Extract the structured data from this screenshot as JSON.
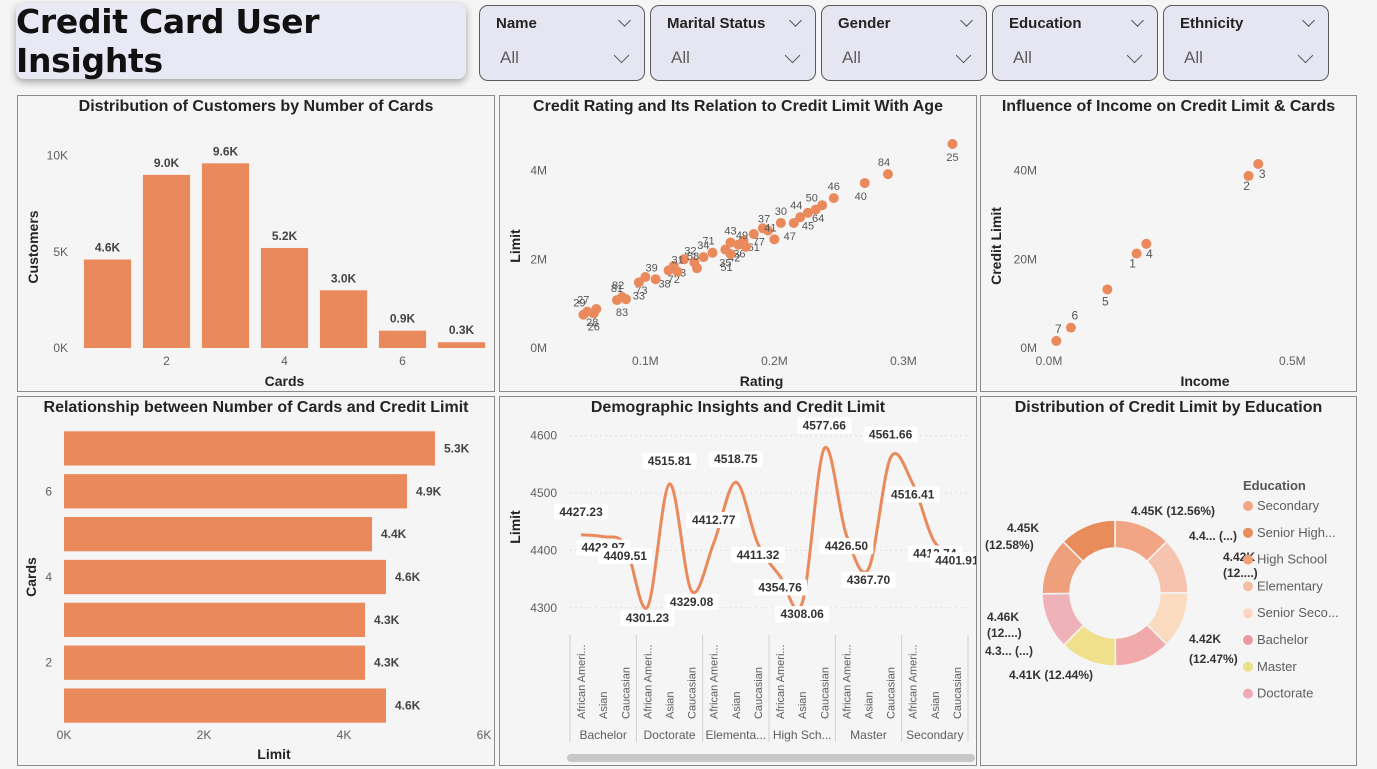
{
  "page": {
    "title": "Credit Card User Insights"
  },
  "slicers": [
    {
      "label": "Name",
      "value": "All"
    },
    {
      "label": "Marital Status",
      "value": "All"
    },
    {
      "label": "Gender",
      "value": "All"
    },
    {
      "label": "Education",
      "value": "All"
    },
    {
      "label": "Ethnicity",
      "value": "All"
    }
  ],
  "colors": {
    "accent": "#ea8a5c",
    "background": "#f5f5f5",
    "panel_border": "#8a8a8a"
  },
  "chart_data": [
    {
      "id": "cards_dist",
      "type": "bar",
      "title": "Distribution of Customers by Number of Cards",
      "xlabel": "Cards",
      "ylabel": "Customers",
      "x": [
        1,
        2,
        3,
        4,
        5,
        6,
        7
      ],
      "values": [
        4600,
        9000,
        9600,
        5200,
        3000,
        900,
        300
      ],
      "data_labels": [
        "4.6K",
        "9.0K",
        "9.6K",
        "5.2K",
        "3.0K",
        "0.9K",
        "0.3K"
      ],
      "x_ticks": [
        "2",
        "4",
        "6"
      ],
      "y_ticks": [
        "0K",
        "5K",
        "10K"
      ],
      "ylim": [
        0,
        10500
      ]
    },
    {
      "id": "rating_limit",
      "type": "scatter",
      "title": "Credit Rating and Its Relation to Credit Limit With Age",
      "xlabel": "Rating",
      "ylabel": "Limit",
      "x_ticks": [
        "0.1M",
        "0.2M",
        "0.3M"
      ],
      "y_ticks": [
        "0M",
        "2M",
        "4M"
      ],
      "xlim": [
        0.03,
        0.35
      ],
      "ylim": [
        0,
        4.6
      ],
      "points": [
        {
          "x": 0.338,
          "y": 4.6,
          "label": "25"
        },
        {
          "x": 0.288,
          "y": 3.92,
          "label": "84"
        },
        {
          "x": 0.27,
          "y": 3.72,
          "label": "40"
        },
        {
          "x": 0.246,
          "y": 3.38,
          "label": "46"
        },
        {
          "x": 0.237,
          "y": 3.22,
          "label": "64"
        },
        {
          "x": 0.232,
          "y": 3.12,
          "label": "50"
        },
        {
          "x": 0.226,
          "y": 3.05,
          "label": "45"
        },
        {
          "x": 0.22,
          "y": 2.95,
          "label": "44"
        },
        {
          "x": 0.215,
          "y": 2.82,
          "label": "47"
        },
        {
          "x": 0.205,
          "y": 2.82,
          "label": "30"
        },
        {
          "x": 0.191,
          "y": 2.7,
          "label": "77"
        },
        {
          "x": 0.195,
          "y": 2.65,
          "label": "37"
        },
        {
          "x": 0.184,
          "y": 2.57,
          "label": "61"
        },
        {
          "x": 0.2,
          "y": 2.45,
          "label": "41"
        },
        {
          "x": 0.176,
          "y": 2.42,
          "label": "36"
        },
        {
          "x": 0.166,
          "y": 2.38,
          "label": "43"
        },
        {
          "x": 0.172,
          "y": 2.33,
          "label": "42"
        },
        {
          "x": 0.178,
          "y": 2.28,
          "label": "49"
        },
        {
          "x": 0.162,
          "y": 2.22,
          "label": "35"
        },
        {
          "x": 0.152,
          "y": 2.15,
          "label": "71"
        },
        {
          "x": 0.166,
          "y": 2.12,
          "label": "51"
        },
        {
          "x": 0.145,
          "y": 2.05,
          "label": "34"
        },
        {
          "x": 0.13,
          "y": 2.0,
          "label": "53"
        },
        {
          "x": 0.138,
          "y": 1.93,
          "label": "32"
        },
        {
          "x": 0.122,
          "y": 1.85,
          "label": "72"
        },
        {
          "x": 0.14,
          "y": 1.8,
          "label": "58"
        },
        {
          "x": 0.118,
          "y": 1.75,
          "label": "38"
        },
        {
          "x": 0.125,
          "y": 1.72,
          "label": "31"
        },
        {
          "x": 0.1,
          "y": 1.6,
          "label": "73"
        },
        {
          "x": 0.108,
          "y": 1.55,
          "label": "39"
        },
        {
          "x": 0.095,
          "y": 1.48,
          "label": "33"
        },
        {
          "x": 0.082,
          "y": 1.15,
          "label": "82"
        },
        {
          "x": 0.085,
          "y": 1.1,
          "label": "83"
        },
        {
          "x": 0.078,
          "y": 1.08,
          "label": "81"
        },
        {
          "x": 0.062,
          "y": 0.88,
          "label": "28"
        },
        {
          "x": 0.055,
          "y": 0.82,
          "label": "27"
        },
        {
          "x": 0.06,
          "y": 0.78,
          "label": "26"
        },
        {
          "x": 0.052,
          "y": 0.75,
          "label": "29"
        }
      ]
    },
    {
      "id": "income_limit",
      "type": "scatter",
      "title": "Influence of Income on Credit Limit & Cards",
      "xlabel": "Income",
      "ylabel": "Credit Limit",
      "x_ticks": [
        "0.0M",
        "0.5M"
      ],
      "y_ticks": [
        "0M",
        "20M",
        "40M"
      ],
      "xlim": [
        0,
        0.6
      ],
      "ylim": [
        0,
        46
      ],
      "points": [
        {
          "x": 0.43,
          "y": 41.5,
          "label": "3"
        },
        {
          "x": 0.41,
          "y": 38.8,
          "label": "2"
        },
        {
          "x": 0.2,
          "y": 23.5,
          "label": "4"
        },
        {
          "x": 0.18,
          "y": 21.3,
          "label": "1"
        },
        {
          "x": 0.12,
          "y": 13.2,
          "label": "5"
        },
        {
          "x": 0.045,
          "y": 4.6,
          "label": "6"
        },
        {
          "x": 0.015,
          "y": 1.6,
          "label": "7"
        }
      ]
    },
    {
      "id": "cards_limit",
      "type": "bar",
      "title": "Relationship between Number of Cards and Credit Limit",
      "xlabel": "Limit",
      "ylabel": "Cards",
      "categories": [
        "7",
        "6",
        "5",
        "4",
        "3",
        "2",
        "1"
      ],
      "values": [
        5300,
        4900,
        4400,
        4600,
        4300,
        4300,
        4600
      ],
      "data_labels": [
        "5.3K",
        "4.9K",
        "4.4K",
        "4.6K",
        "4.3K",
        "4.3K",
        "4.6K"
      ],
      "y_ticks": [
        "6",
        "4",
        "2"
      ],
      "x_ticks": [
        "0K",
        "2K",
        "4K",
        "6K"
      ],
      "xlim": [
        0,
        6000
      ]
    },
    {
      "id": "demographic_limit",
      "type": "line",
      "title": "Demographic Insights and Credit Limit",
      "ylabel": "Limit",
      "y_ticks": [
        "4300",
        "4400",
        "4500",
        "4600"
      ],
      "ylim": [
        4270,
        4615
      ],
      "categories": [
        "African Ameri...",
        "Asian",
        "Caucasian",
        "African Ameri...",
        "Asian",
        "Caucasian",
        "African Ameri...",
        "Asian",
        "Caucasian",
        "African Ameri...",
        "Asian",
        "Caucasian",
        "African Ameri...",
        "Asian",
        "Caucasian",
        "African Ameri...",
        "Asian",
        "Caucasian"
      ],
      "groups": [
        "Bachelor",
        "Doctorate",
        "Elementa...",
        "High Sch...",
        "Master",
        "Secondary"
      ],
      "values": [
        4427.23,
        4423.97,
        4409.51,
        4301.23,
        4515.81,
        4329.08,
        4412.77,
        4518.75,
        4411.32,
        4354.76,
        4308.06,
        4577.66,
        4426.5,
        4367.7,
        4561.66,
        4516.41,
        4413.74,
        4401.91
      ],
      "data_labels": [
        "4427.23",
        "4423.97",
        "4409.51",
        "4301.23",
        "4515.81",
        "4329.08",
        "4412.77",
        "4518.75",
        "4411.32",
        "4354.76",
        "4308.06",
        "4577.66",
        "4426.50",
        "4367.70",
        "4561.66",
        "4516.41",
        "4413.74",
        "4401.91"
      ]
    },
    {
      "id": "education_donut",
      "type": "pie",
      "title": "Distribution of Credit Limit by Education",
      "legend_title": "Education",
      "legend_position": "right",
      "slices": [
        {
          "name": "Secondary",
          "value": 12.56,
          "color": "#f1a584",
          "label": "4.45K (12.56%)"
        },
        {
          "name": "Senior High...",
          "value": 12.45,
          "color": "#f6c4ae",
          "label": "4.4... (...)"
        },
        {
          "name": "High School",
          "value": 12.43,
          "color": "#fbdbc0",
          "label": "4.42K (12....)"
        },
        {
          "name": "Elementary",
          "value": 12.47,
          "color": "#efaaa9",
          "label": "4.42K (12.47%)"
        },
        {
          "name": "Senior Seco...",
          "value": 12.44,
          "color": "#f0e08c",
          "label": "4.41K (12.44%)"
        },
        {
          "name": "Bachelor",
          "value": 12.5,
          "color": "#eeb2b8",
          "label": "4.3... (...)"
        },
        {
          "name": "Master",
          "value": 12.57,
          "color": "#eea07c",
          "label": "4.46K (12....)"
        },
        {
          "name": "Doctorate",
          "value": 12.58,
          "color": "#e88c5c",
          "label": "4.45K (12.58%)"
        }
      ],
      "legend": [
        {
          "name": "Secondary",
          "color": "#f1a584"
        },
        {
          "name": "Senior High...",
          "color": "#e88c5c"
        },
        {
          "name": "High School",
          "color": "#f0a078"
        },
        {
          "name": "Elementary",
          "color": "#f4bda6"
        },
        {
          "name": "Senior Seco...",
          "color": "#fbd6c1"
        },
        {
          "name": "Bachelor",
          "color": "#ea9aa5"
        },
        {
          "name": "Master",
          "color": "#ece088"
        },
        {
          "name": "Doctorate",
          "color": "#eeaab3"
        }
      ]
    }
  ]
}
